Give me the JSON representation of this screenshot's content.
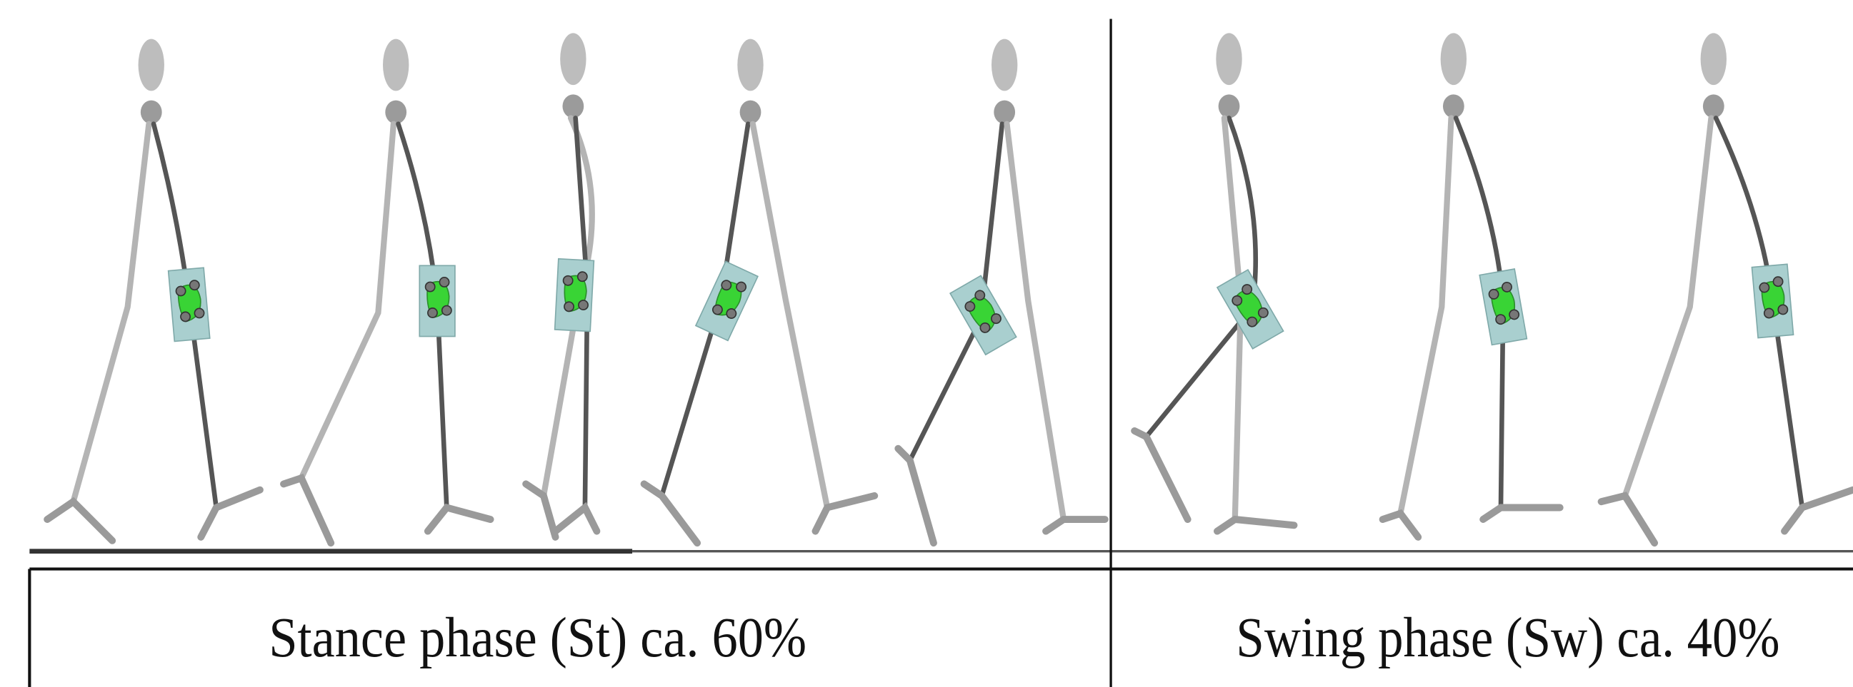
{
  "phases": [
    {
      "label": "Stance phase (St) ca. 60%"
    },
    {
      "label": "Swing phase (Sw) ca. 40%"
    }
  ]
}
